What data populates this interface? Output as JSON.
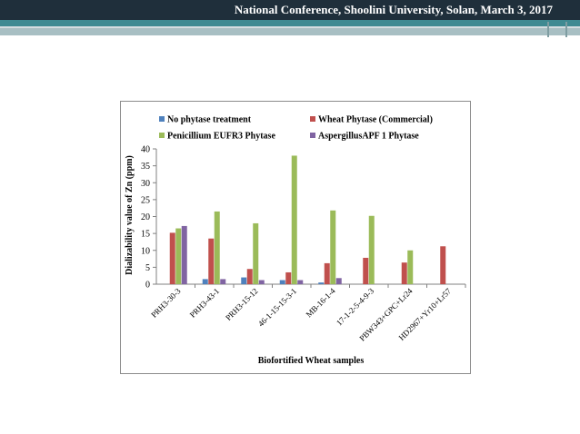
{
  "header": {
    "title": "National Conference, Shoolini University, Solan, March 3, 2017"
  },
  "colors": {
    "header_bg": "#1f2f3b",
    "stripe": "#3f8a92"
  },
  "chart_data": {
    "type": "bar",
    "xlabel": "Biofortified Wheat samples",
    "ylabel": "Dializability value of Zn (ppm)",
    "ylim": [
      0,
      40
    ],
    "yticks": [
      "0",
      "5",
      "10",
      "15",
      "20",
      "25",
      "30",
      "35",
      "40"
    ],
    "grid": false,
    "legend_position": "top",
    "categories": [
      "PRH3-30-3",
      "PRH3-43-1",
      "PRH3-15-12",
      "46-1-15-15-3-1",
      "MB-16-1-4",
      "17-1-2-5-4-9-3",
      "PBW343+GPC+Lr24",
      "HD2967+Yr10+Lr57"
    ],
    "series": [
      {
        "name": "No phytase treatment",
        "color": "#4f81bd",
        "values": [
          0,
          1.5,
          2,
          1.2,
          0.5,
          0,
          0,
          0
        ]
      },
      {
        "name": "Wheat Phytase (Commercial)",
        "color": "#c0504d",
        "values": [
          15.2,
          13.5,
          4.5,
          3.5,
          6.2,
          7.8,
          6.4,
          11.2
        ]
      },
      {
        "name": "Penicillium EUFR3 Phytase",
        "color": "#9bbb59",
        "values": [
          16.5,
          21.5,
          18,
          38,
          21.8,
          20.2,
          10,
          0
        ]
      },
      {
        "name": "AspergillusAPF 1 Phytase",
        "color": "#8064a2",
        "values": [
          17.2,
          1.5,
          1.2,
          1.2,
          1.8,
          0,
          0,
          0
        ]
      }
    ]
  }
}
